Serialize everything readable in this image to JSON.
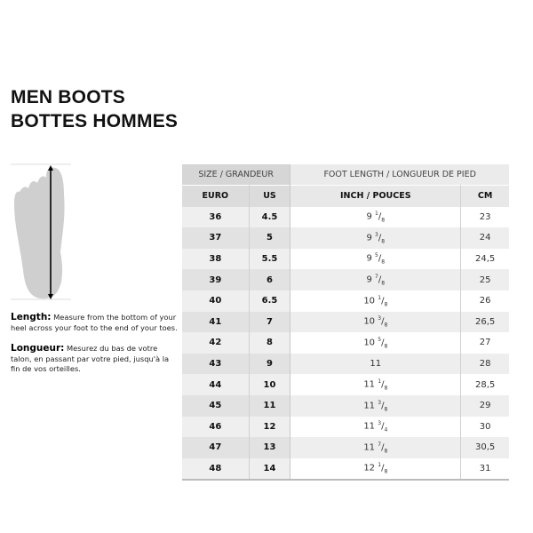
{
  "title": {
    "line1": "MEN BOOTS",
    "line2": "BOTTES HOMMES"
  },
  "instructions": {
    "en_label": "Length:",
    "en_text": "Measure from the bottom of your heel across your foot to the end of your toes.",
    "fr_label": "Longueur:",
    "fr_text": "Mesurez du bas de votre talon, en passant par votre pied, jusqu'à la fin de vos orteilles."
  },
  "table": {
    "group_headers": [
      "SIZE / GRANDEUR",
      "FOOT LENGTH / LONGUEUR DE PIED"
    ],
    "columns": [
      "EURO",
      "US",
      "INCH / POUCES",
      "CM"
    ],
    "rows": [
      {
        "euro": "36",
        "us": "4.5",
        "inch_whole": "9",
        "inch_num": "1",
        "inch_den": "8",
        "cm": "23"
      },
      {
        "euro": "37",
        "us": "5",
        "inch_whole": "9",
        "inch_num": "3",
        "inch_den": "8",
        "cm": "24"
      },
      {
        "euro": "38",
        "us": "5.5",
        "inch_whole": "9",
        "inch_num": "5",
        "inch_den": "8",
        "cm": "24,5"
      },
      {
        "euro": "39",
        "us": "6",
        "inch_whole": "9",
        "inch_num": "7",
        "inch_den": "8",
        "cm": "25"
      },
      {
        "euro": "40",
        "us": "6.5",
        "inch_whole": "10",
        "inch_num": "1",
        "inch_den": "8",
        "cm": "26"
      },
      {
        "euro": "41",
        "us": "7",
        "inch_whole": "10",
        "inch_num": "3",
        "inch_den": "8",
        "cm": "26,5"
      },
      {
        "euro": "42",
        "us": "8",
        "inch_whole": "10",
        "inch_num": "5",
        "inch_den": "8",
        "cm": "27"
      },
      {
        "euro": "43",
        "us": "9",
        "inch_whole": "11",
        "inch_num": "",
        "inch_den": "",
        "cm": "28"
      },
      {
        "euro": "44",
        "us": "10",
        "inch_whole": "11",
        "inch_num": "1",
        "inch_den": "8",
        "cm": "28,5"
      },
      {
        "euro": "45",
        "us": "11",
        "inch_whole": "11",
        "inch_num": "3",
        "inch_den": "8",
        "cm": "29"
      },
      {
        "euro": "46",
        "us": "12",
        "inch_whole": "11",
        "inch_num": "3",
        "inch_den": "4",
        "cm": "30"
      },
      {
        "euro": "47",
        "us": "13",
        "inch_whole": "11",
        "inch_num": "7",
        "inch_den": "8",
        "cm": "30,5"
      },
      {
        "euro": "48",
        "us": "14",
        "inch_whole": "12",
        "inch_num": "1",
        "inch_den": "8",
        "cm": "31"
      }
    ]
  }
}
